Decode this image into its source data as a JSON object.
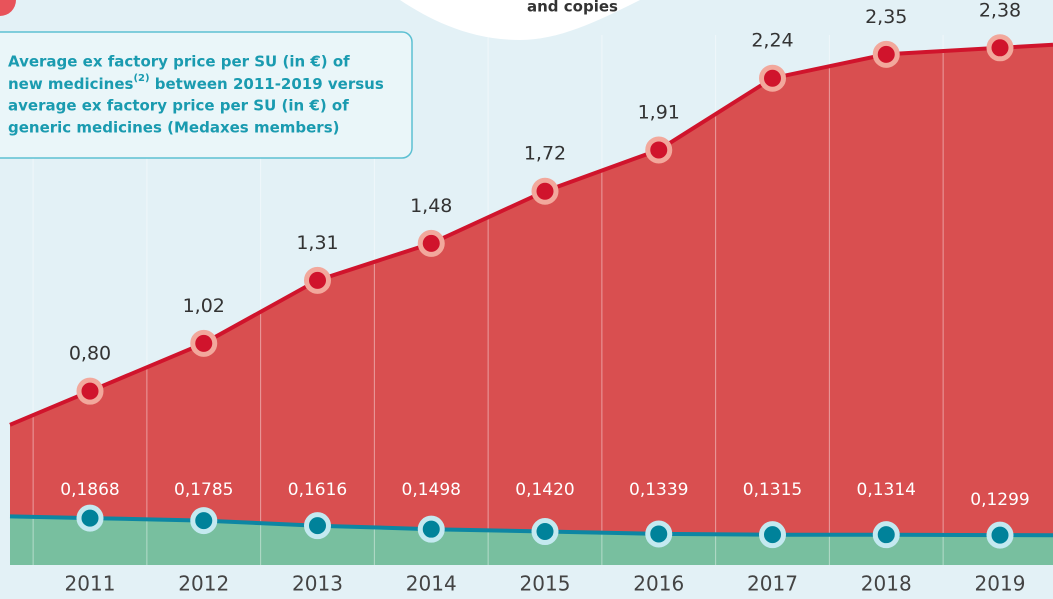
{
  "chart_data": {
    "type": "area",
    "subtitle": "and copies",
    "annotation": {
      "line1": "Average ex factory price per SU (in €) of",
      "line2a": "new medicines",
      "line2sup": "(2)",
      "line2b": " between 2011-2019 versus",
      "line3": "average ex factory price per SU (in €) of",
      "line4": "generic medicines (Medaxes members)"
    },
    "categories": [
      "2011",
      "2012",
      "2013",
      "2014",
      "2015",
      "2016",
      "2017",
      "2018",
      "2019"
    ],
    "ylim": [
      0,
      2.6
    ],
    "y2lim": [
      0.03,
      1.92
    ],
    "series": [
      {
        "name": "new medicines",
        "color": "#d0142c",
        "area_color": "#d94f50",
        "values": [
          0.8,
          1.02,
          1.31,
          1.48,
          1.72,
          1.91,
          2.24,
          2.35,
          2.38
        ],
        "value_labels": [
          "0,80",
          "1,02",
          "1,31",
          "1,48",
          "1,72",
          "1,91",
          "2,24",
          "2,35",
          "2,38"
        ]
      },
      {
        "name": "generic medicines",
        "color": "#0d86a3",
        "area_color": "#78bf9f",
        "axis": "y2",
        "values": [
          0.1868,
          0.1785,
          0.1616,
          0.1498,
          0.142,
          0.1339,
          0.1315,
          0.1314,
          0.1299
        ],
        "value_labels": [
          "0,1868",
          "0,1785",
          "0,1616",
          "0,1498",
          "0,1420",
          "0,1339",
          "0,1315",
          "0,1314",
          "0,1299"
        ]
      }
    ]
  }
}
